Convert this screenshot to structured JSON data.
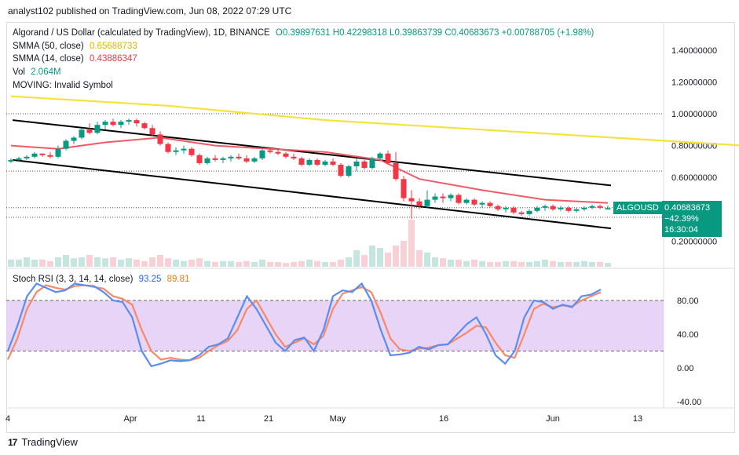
{
  "header": {
    "publisher_line": "analyst102 published on TradingView.com, Jun 08, 2022 07:29 UTC"
  },
  "legend": {
    "title": "Algorand / US Dollar (calculated by TradingView), 1D, BINANCE",
    "ohlc": "O0.39897631 H0.42298318 L0.39863739 C0.40683673 +0.00788705 (+1.98%)",
    "sma50_label": "SMMA (50, close)",
    "sma50_value": "0.65688733",
    "sma14_label": "SMMA (14, close)",
    "sma14_value": "0.43886347",
    "vol_label": "Vol",
    "vol_value": "2.064M",
    "moving_label": "MOVING: Invalid Symbol",
    "stoch_label": "Stoch RSI (3, 3, 14, 14, close)",
    "stoch_k": "93.25",
    "stoch_d": "89.81"
  },
  "price_tag": {
    "symbol": "ALGOUSD",
    "price": "0.40683673",
    "change": "−42.39%",
    "countdown": "16:30:04"
  },
  "footer": {
    "brand": "TradingView",
    "logo_text": "17"
  },
  "colors": {
    "up": "#089981",
    "down": "#f23645",
    "sma50": "#f5e23b",
    "sma14": "#f05a66",
    "stoch_k": "#5b8def",
    "stoch_d": "#f5896a",
    "stoch_band": "#e4cdf6"
  },
  "chart_data": [
    {
      "type": "candlestick",
      "title": "Algorand / US Dollar (calculated by TradingView), 1D, BINANCE",
      "y_ticks": [
        "1.40000000",
        "1.20000000",
        "1.00000000",
        "0.80000000",
        "0.60000000",
        "0.20000000"
      ],
      "x_ticks": [
        "4",
        "Apr",
        "11",
        "21",
        "May",
        "16",
        "Jun",
        "13"
      ],
      "horizontal_levels": [
        1.0,
        0.64,
        0.41,
        0.35
      ],
      "candles": [
        [
          0.7,
          0.72,
          0.69,
          0.71
        ],
        [
          0.71,
          0.73,
          0.7,
          0.72
        ],
        [
          0.72,
          0.74,
          0.71,
          0.73
        ],
        [
          0.73,
          0.76,
          0.72,
          0.75
        ],
        [
          0.75,
          0.75,
          0.73,
          0.74
        ],
        [
          0.74,
          0.76,
          0.72,
          0.73
        ],
        [
          0.73,
          0.8,
          0.72,
          0.78
        ],
        [
          0.78,
          0.84,
          0.77,
          0.83
        ],
        [
          0.83,
          0.86,
          0.81,
          0.85
        ],
        [
          0.85,
          0.91,
          0.84,
          0.9
        ],
        [
          0.9,
          0.94,
          0.87,
          0.88
        ],
        [
          0.88,
          0.95,
          0.87,
          0.93
        ],
        [
          0.93,
          0.96,
          0.9,
          0.95
        ],
        [
          0.95,
          0.97,
          0.92,
          0.93
        ],
        [
          0.93,
          0.96,
          0.91,
          0.95
        ],
        [
          0.95,
          0.97,
          0.93,
          0.96
        ],
        [
          0.96,
          0.97,
          0.92,
          0.94
        ],
        [
          0.94,
          0.95,
          0.9,
          0.91
        ],
        [
          0.91,
          0.93,
          0.86,
          0.87
        ],
        [
          0.87,
          0.89,
          0.8,
          0.81
        ],
        [
          0.81,
          0.82,
          0.75,
          0.76
        ],
        [
          0.76,
          0.79,
          0.74,
          0.77
        ],
        [
          0.77,
          0.8,
          0.75,
          0.78
        ],
        [
          0.78,
          0.79,
          0.73,
          0.74
        ],
        [
          0.74,
          0.75,
          0.68,
          0.69
        ],
        [
          0.69,
          0.73,
          0.68,
          0.72
        ],
        [
          0.72,
          0.74,
          0.7,
          0.71
        ],
        [
          0.71,
          0.73,
          0.69,
          0.72
        ],
        [
          0.72,
          0.74,
          0.7,
          0.73
        ],
        [
          0.73,
          0.75,
          0.71,
          0.72
        ],
        [
          0.72,
          0.74,
          0.69,
          0.7
        ],
        [
          0.7,
          0.73,
          0.69,
          0.72
        ],
        [
          0.72,
          0.78,
          0.71,
          0.77
        ],
        [
          0.77,
          0.79,
          0.75,
          0.76
        ],
        [
          0.76,
          0.78,
          0.74,
          0.75
        ],
        [
          0.75,
          0.76,
          0.72,
          0.73
        ],
        [
          0.73,
          0.75,
          0.71,
          0.72
        ],
        [
          0.72,
          0.73,
          0.67,
          0.68
        ],
        [
          0.68,
          0.72,
          0.67,
          0.71
        ],
        [
          0.71,
          0.72,
          0.67,
          0.68
        ],
        [
          0.68,
          0.71,
          0.67,
          0.7
        ],
        [
          0.7,
          0.72,
          0.67,
          0.68
        ],
        [
          0.68,
          0.69,
          0.6,
          0.61
        ],
        [
          0.61,
          0.68,
          0.6,
          0.67
        ],
        [
          0.67,
          0.72,
          0.64,
          0.7
        ],
        [
          0.7,
          0.72,
          0.65,
          0.66
        ],
        [
          0.66,
          0.73,
          0.65,
          0.72
        ],
        [
          0.72,
          0.76,
          0.71,
          0.75
        ],
        [
          0.75,
          0.77,
          0.68,
          0.69
        ],
        [
          0.69,
          0.76,
          0.58,
          0.59
        ],
        [
          0.59,
          0.61,
          0.45,
          0.47
        ],
        [
          0.47,
          0.52,
          0.34,
          0.45
        ],
        [
          0.45,
          0.47,
          0.4,
          0.42
        ],
        [
          0.42,
          0.52,
          0.41,
          0.46
        ],
        [
          0.46,
          0.5,
          0.44,
          0.48
        ],
        [
          0.48,
          0.5,
          0.44,
          0.47
        ],
        [
          0.47,
          0.5,
          0.45,
          0.49
        ],
        [
          0.49,
          0.5,
          0.43,
          0.44
        ],
        [
          0.44,
          0.47,
          0.43,
          0.46
        ],
        [
          0.46,
          0.47,
          0.42,
          0.43
        ],
        [
          0.43,
          0.45,
          0.41,
          0.44
        ],
        [
          0.44,
          0.45,
          0.41,
          0.42
        ],
        [
          0.42,
          0.43,
          0.39,
          0.4
        ],
        [
          0.4,
          0.42,
          0.38,
          0.41
        ],
        [
          0.41,
          0.42,
          0.37,
          0.38
        ],
        [
          0.38,
          0.39,
          0.36,
          0.37
        ],
        [
          0.37,
          0.4,
          0.36,
          0.39
        ],
        [
          0.39,
          0.42,
          0.38,
          0.41
        ],
        [
          0.41,
          0.43,
          0.39,
          0.42
        ],
        [
          0.42,
          0.43,
          0.39,
          0.4
        ],
        [
          0.4,
          0.42,
          0.39,
          0.41
        ],
        [
          0.41,
          0.42,
          0.38,
          0.39
        ],
        [
          0.39,
          0.41,
          0.38,
          0.4
        ],
        [
          0.4,
          0.42,
          0.39,
          0.41
        ],
        [
          0.41,
          0.43,
          0.4,
          0.42
        ],
        [
          0.42,
          0.43,
          0.4,
          0.41
        ],
        [
          0.399,
          0.423,
          0.399,
          0.407
        ]
      ],
      "sma50": [
        [
          0,
          1.11
        ],
        [
          20,
          1.05
        ],
        [
          40,
          0.96
        ],
        [
          60,
          0.9
        ],
        [
          80,
          0.84
        ],
        [
          100,
          0.78
        ],
        [
          120,
          0.72
        ],
        [
          140,
          0.67
        ]
      ],
      "sma14": [
        [
          0,
          0.8
        ],
        [
          6,
          0.78
        ],
        [
          12,
          0.82
        ],
        [
          19,
          0.85
        ],
        [
          26,
          0.8
        ],
        [
          33,
          0.78
        ],
        [
          40,
          0.76
        ],
        [
          47,
          0.71
        ],
        [
          52,
          0.59
        ],
        [
          60,
          0.52
        ],
        [
          68,
          0.46
        ],
        [
          76,
          0.44
        ]
      ],
      "channel_upper": [
        [
          0.2,
          0.96
        ],
        [
          76.4,
          0.55
        ]
      ],
      "channel_lower": [
        [
          0.2,
          0.71
        ],
        [
          76.4,
          0.28
        ]
      ]
    },
    {
      "type": "line",
      "title": "Stoch RSI (3, 3, 14, 14, close)",
      "y_ticks": [
        "80.00",
        "40.00",
        "0.00",
        "-40.00"
      ],
      "band": [
        20,
        80
      ],
      "series": [
        {
          "name": "K",
          "values": [
            20,
            50,
            85,
            100,
            95,
            90,
            92,
            100,
            98,
            97,
            90,
            80,
            78,
            60,
            20,
            2,
            5,
            9,
            8,
            9,
            15,
            25,
            28,
            35,
            60,
            85,
            70,
            50,
            30,
            20,
            33,
            36,
            20,
            45,
            85,
            92,
            90,
            100,
            80,
            45,
            15,
            16,
            18,
            25,
            22,
            27,
            28,
            40,
            52,
            60,
            40,
            15,
            5,
            20,
            60,
            80,
            78,
            70,
            75,
            72,
            85,
            87,
            93
          ]
        },
        {
          "name": "D",
          "values": [
            10,
            35,
            70,
            90,
            98,
            95,
            93,
            97,
            98,
            96,
            94,
            85,
            82,
            75,
            45,
            20,
            10,
            12,
            10,
            9,
            12,
            20,
            27,
            32,
            45,
            70,
            80,
            60,
            40,
            25,
            30,
            35,
            28,
            38,
            70,
            88,
            92,
            96,
            90,
            65,
            35,
            22,
            20,
            23,
            24,
            27,
            28,
            35,
            42,
            50,
            48,
            30,
            15,
            12,
            40,
            70,
            76,
            72,
            74,
            73,
            80,
            85,
            89.81
          ]
        }
      ]
    },
    {
      "type": "bar",
      "title": "Vol",
      "values_relative": [
        0.15,
        0.15,
        0.2,
        0.15,
        0.15,
        0.12,
        0.2,
        0.25,
        0.18,
        0.2,
        0.25,
        0.2,
        0.18,
        0.2,
        0.15,
        0.18,
        0.15,
        0.12,
        0.2,
        0.25,
        0.18,
        0.15,
        0.12,
        0.15,
        0.18,
        0.12,
        0.1,
        0.12,
        0.12,
        0.1,
        0.12,
        0.1,
        0.15,
        0.1,
        0.1,
        0.08,
        0.1,
        0.12,
        0.15,
        0.12,
        0.1,
        0.1,
        0.15,
        0.2,
        0.35,
        0.25,
        0.45,
        0.4,
        0.3,
        0.45,
        0.55,
        1.0,
        0.35,
        0.3,
        0.2,
        0.18,
        0.15,
        0.15,
        0.12,
        0.15,
        0.12,
        0.1,
        0.1,
        0.12,
        0.12,
        0.1,
        0.1,
        0.12,
        0.15,
        0.12,
        0.1,
        0.1,
        0.1,
        0.12,
        0.1,
        0.1,
        0.08
      ]
    }
  ]
}
